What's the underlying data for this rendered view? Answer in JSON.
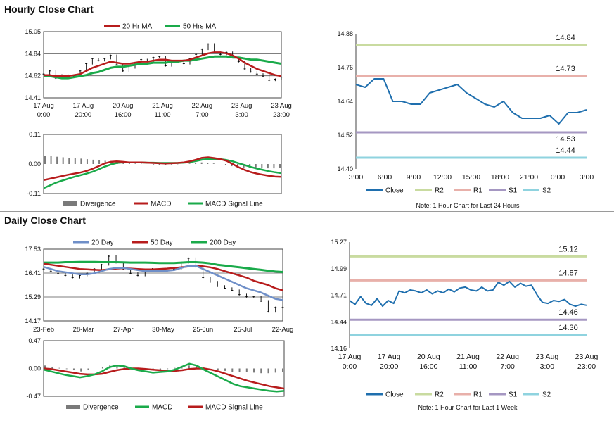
{
  "sections": {
    "hourly_title": "Hourly Close Chart",
    "daily_title": "Daily Close Chart"
  },
  "colors": {
    "red": "#b71c1c",
    "green": "#1aaa4a",
    "blue": "#1f6fae",
    "steel": "#6f8fc8",
    "r2": "#c9dba0",
    "r1": "#e8b0aa",
    "s1": "#a597c2",
    "s2": "#8fd3df",
    "grey": "#7a7a7a"
  },
  "chart_data": [
    {
      "id": "hourly_price",
      "type": "line",
      "title": "Hourly Close Chart",
      "legend": [
        "20 Hr MA",
        "50 Hrs MA"
      ],
      "ylim": [
        14.41,
        15.05
      ],
      "yticks": [
        "15.05",
        "14.84",
        "14.62",
        "14.41"
      ],
      "xticks": [
        [
          "17 Aug",
          "0:00"
        ],
        [
          "17 Aug",
          "20:00"
        ],
        [
          "20 Aug",
          "16:00"
        ],
        [
          "21 Aug",
          "11:00"
        ],
        [
          "22 Aug",
          "7:00"
        ],
        [
          "23 Aug",
          "3:00"
        ],
        [
          "23 Aug",
          "23:00"
        ]
      ],
      "series": [
        {
          "name": "Close",
          "values": [
            14.64,
            14.67,
            14.6,
            14.63,
            14.61,
            14.62,
            14.67,
            14.74,
            14.79,
            14.77,
            14.79,
            14.82,
            14.73,
            14.67,
            14.7,
            14.75,
            14.78,
            14.76,
            14.8,
            14.81,
            14.72,
            14.76,
            14.77,
            14.74,
            14.79,
            14.83,
            14.88,
            14.93,
            14.85,
            14.83,
            14.85,
            14.8,
            14.76,
            14.69,
            14.66,
            14.64,
            14.62,
            14.58,
            14.59,
            14.61
          ]
        },
        {
          "name": "20 Hr MA",
          "values": [
            14.63,
            14.63,
            14.62,
            14.62,
            14.62,
            14.63,
            14.64,
            14.67,
            14.7,
            14.72,
            14.74,
            14.76,
            14.75,
            14.74,
            14.74,
            14.75,
            14.76,
            14.76,
            14.77,
            14.78,
            14.78,
            14.77,
            14.77,
            14.77,
            14.78,
            14.8,
            14.82,
            14.84,
            14.85,
            14.85,
            14.84,
            14.82,
            14.79,
            14.75,
            14.72,
            14.69,
            14.67,
            14.65,
            14.63,
            14.62
          ]
        },
        {
          "name": "50 Hrs MA",
          "values": [
            14.62,
            14.62,
            14.61,
            14.6,
            14.6,
            14.61,
            14.62,
            14.63,
            14.65,
            14.66,
            14.68,
            14.7,
            14.71,
            14.71,
            14.72,
            14.73,
            14.74,
            14.74,
            14.75,
            14.75,
            14.75,
            14.76,
            14.76,
            14.77,
            14.77,
            14.78,
            14.79,
            14.8,
            14.81,
            14.81,
            14.81,
            14.8,
            14.8,
            14.79,
            14.78,
            14.78,
            14.77,
            14.76,
            14.75,
            14.74
          ]
        }
      ]
    },
    {
      "id": "hourly_macd",
      "type": "line",
      "legend": [
        "Divergence",
        "MACD",
        "MACD Signal Line"
      ],
      "ylim": [
        -0.11,
        0.11
      ],
      "yticks": [
        "0.11",
        "0.00",
        "-0.11"
      ],
      "series": [
        {
          "name": "Divergence",
          "values": [
            0.03,
            0.029,
            0.027,
            0.025,
            0.023,
            0.022,
            0.02,
            0.018,
            0.016,
            0.014,
            0.012,
            0.01,
            0.008,
            0.006,
            0.004,
            0.002,
            0.001,
            0.0,
            -0.002,
            -0.003,
            -0.003,
            -0.002,
            -0.001,
            0.0,
            0.002,
            0.004,
            0.006,
            0.004,
            0.002,
            0.0,
            -0.004,
            -0.008,
            -0.011,
            -0.013,
            -0.014,
            -0.015,
            -0.016,
            -0.016,
            -0.016,
            -0.015
          ]
        },
        {
          "name": "MACD",
          "values": [
            -0.06,
            -0.055,
            -0.05,
            -0.045,
            -0.04,
            -0.036,
            -0.032,
            -0.026,
            -0.018,
            -0.008,
            0.002,
            0.008,
            0.01,
            0.008,
            0.006,
            0.006,
            0.006,
            0.005,
            0.004,
            0.003,
            0.002,
            0.003,
            0.004,
            0.006,
            0.01,
            0.016,
            0.023,
            0.025,
            0.022,
            0.018,
            0.012,
            0.0,
            -0.012,
            -0.022,
            -0.03,
            -0.036,
            -0.04,
            -0.044,
            -0.047,
            -0.048
          ]
        },
        {
          "name": "MACD Signal Line",
          "values": [
            -0.09,
            -0.08,
            -0.07,
            -0.062,
            -0.055,
            -0.048,
            -0.042,
            -0.036,
            -0.029,
            -0.02,
            -0.01,
            -0.002,
            0.004,
            0.006,
            0.006,
            0.006,
            0.006,
            0.005,
            0.005,
            0.004,
            0.004,
            0.004,
            0.004,
            0.005,
            0.007,
            0.011,
            0.016,
            0.019,
            0.019,
            0.018,
            0.015,
            0.01,
            0.003,
            -0.004,
            -0.011,
            -0.017,
            -0.022,
            -0.027,
            -0.031,
            -0.034
          ]
        }
      ]
    },
    {
      "id": "hourly_levels",
      "type": "line",
      "note": "Note: 1 Hour Chart for Last 24 Hours",
      "legend": [
        "Close",
        "R2",
        "R1",
        "S1",
        "S2"
      ],
      "ylim": [
        14.4,
        14.88
      ],
      "yticks": [
        "14.88",
        "14.76",
        "14.64",
        "14.52",
        "14.40"
      ],
      "xticks": [
        "3:00",
        "6:00",
        "9:00",
        "12:00",
        "15:00",
        "18:00",
        "21:00",
        "0:00",
        "3:00"
      ],
      "levels": [
        {
          "name": "R2",
          "value": 14.84,
          "label": "14.84"
        },
        {
          "name": "R1",
          "value": 14.73,
          "label": "14.73"
        },
        {
          "name": "S1",
          "value": 14.53,
          "label": "14.53"
        },
        {
          "name": "S2",
          "value": 14.44,
          "label": "14.44"
        }
      ],
      "series": [
        {
          "name": "Close",
          "values": [
            14.7,
            14.69,
            14.72,
            14.72,
            14.64,
            14.64,
            14.63,
            14.63,
            14.67,
            14.68,
            14.69,
            14.7,
            14.67,
            14.65,
            14.63,
            14.62,
            14.64,
            14.6,
            14.58,
            14.58,
            14.58,
            14.59,
            14.56,
            14.6,
            14.6,
            14.61
          ]
        }
      ]
    },
    {
      "id": "daily_price",
      "type": "line",
      "title": "Daily Close Chart",
      "legend": [
        "20 Day",
        "50 Day",
        "200 Day"
      ],
      "ylim": [
        14.17,
        17.53
      ],
      "yticks": [
        "17.53",
        "16.41",
        "15.29",
        "14.17"
      ],
      "xticks": [
        "23-Feb",
        "28-Mar",
        "27-Apr",
        "30-May",
        "25-Jun",
        "25-Jul",
        "22-Aug"
      ],
      "series": [
        {
          "name": "Close",
          "values": [
            16.6,
            16.5,
            16.4,
            16.3,
            16.2,
            16.3,
            16.4,
            16.6,
            16.8,
            17.2,
            16.9,
            16.6,
            16.4,
            16.3,
            16.5,
            16.6,
            16.5,
            16.5,
            16.6,
            16.9,
            17.1,
            16.7,
            16.2,
            16.0,
            15.8,
            15.7,
            15.6,
            15.4,
            15.3,
            15.3,
            15.1,
            14.6,
            14.8,
            14.8
          ]
        },
        {
          "name": "20 Day",
          "values": [
            16.7,
            16.6,
            16.5,
            16.45,
            16.4,
            16.35,
            16.35,
            16.4,
            16.5,
            16.6,
            16.65,
            16.65,
            16.6,
            16.55,
            16.5,
            16.5,
            16.5,
            16.52,
            16.55,
            16.65,
            16.75,
            16.75,
            16.6,
            16.45,
            16.3,
            16.15,
            16.0,
            15.85,
            15.7,
            15.6,
            15.5,
            15.35,
            15.2,
            15.15
          ]
        },
        {
          "name": "50 Day",
          "values": [
            16.85,
            16.8,
            16.75,
            16.7,
            16.65,
            16.6,
            16.58,
            16.56,
            16.55,
            16.58,
            16.62,
            16.64,
            16.62,
            16.6,
            16.58,
            16.58,
            16.6,
            16.62,
            16.65,
            16.68,
            16.72,
            16.74,
            16.73,
            16.68,
            16.6,
            16.5,
            16.4,
            16.3,
            16.2,
            16.05,
            15.95,
            15.85,
            15.7,
            15.6
          ]
        },
        {
          "name": "200 Day",
          "values": [
            16.9,
            16.9,
            16.9,
            16.92,
            16.92,
            16.93,
            16.93,
            16.93,
            16.92,
            16.92,
            16.92,
            16.91,
            16.9,
            16.9,
            16.9,
            16.89,
            16.88,
            16.88,
            16.88,
            16.9,
            16.92,
            16.92,
            16.9,
            16.86,
            16.8,
            16.76,
            16.72,
            16.68,
            16.64,
            16.6,
            16.56,
            16.52,
            16.48,
            16.46
          ]
        }
      ]
    },
    {
      "id": "daily_macd",
      "type": "line",
      "legend": [
        "Divergence",
        "MACD",
        "MACD Signal Line"
      ],
      "ylim": [
        -0.47,
        0.47
      ],
      "yticks": [
        "0.47",
        "0.00",
        "-0.47"
      ],
      "series": [
        {
          "name": "Divergence",
          "values": [
            0.05,
            0.03,
            0.01,
            -0.01,
            -0.03,
            -0.05,
            -0.03,
            0.0,
            0.03,
            0.05,
            0.04,
            0.02,
            0.0,
            -0.01,
            -0.02,
            -0.03,
            -0.02,
            -0.01,
            0.01,
            0.03,
            0.05,
            0.04,
            0.02,
            0.0,
            -0.02,
            -0.04,
            -0.06,
            -0.06,
            -0.06,
            -0.07,
            -0.08,
            -0.08,
            -0.07,
            -0.06
          ]
        },
        {
          "name": "MACD",
          "values": [
            -0.02,
            -0.05,
            -0.08,
            -0.11,
            -0.13,
            -0.15,
            -0.13,
            -0.1,
            -0.05,
            0.02,
            0.05,
            0.04,
            0.0,
            -0.03,
            -0.05,
            -0.07,
            -0.06,
            -0.05,
            -0.02,
            0.03,
            0.08,
            0.05,
            -0.02,
            -0.08,
            -0.14,
            -0.2,
            -0.26,
            -0.3,
            -0.32,
            -0.34,
            -0.36,
            -0.38,
            -0.39,
            -0.38
          ]
        },
        {
          "name": "MACD Signal Line",
          "values": [
            0.0,
            -0.01,
            -0.03,
            -0.05,
            -0.07,
            -0.09,
            -0.1,
            -0.1,
            -0.09,
            -0.06,
            -0.03,
            -0.01,
            0.0,
            0.0,
            -0.01,
            -0.02,
            -0.03,
            -0.04,
            -0.04,
            -0.03,
            -0.01,
            0.0,
            0.0,
            -0.02,
            -0.05,
            -0.09,
            -0.13,
            -0.17,
            -0.21,
            -0.24,
            -0.27,
            -0.3,
            -0.32,
            -0.34
          ]
        }
      ]
    },
    {
      "id": "daily_levels",
      "type": "line",
      "note": "Note: 1 Hour Chart for Last 1 Week",
      "legend": [
        "Close",
        "R2",
        "R1",
        "S1",
        "S2"
      ],
      "ylim": [
        14.16,
        15.27
      ],
      "yticks": [
        "15.27",
        "14.99",
        "14.71",
        "14.44",
        "14.16"
      ],
      "xticks": [
        [
          "17 Aug",
          "0:00"
        ],
        [
          "17 Aug",
          "20:00"
        ],
        [
          "20 Aug",
          "16:00"
        ],
        [
          "21 Aug",
          "11:00"
        ],
        [
          "22 Aug",
          "7:00"
        ],
        [
          "23 Aug",
          "3:00"
        ],
        [
          "23 Aug",
          "23:00"
        ]
      ],
      "levels": [
        {
          "name": "R2",
          "value": 15.12,
          "label": "15.12"
        },
        {
          "name": "R1",
          "value": 14.87,
          "label": "14.87"
        },
        {
          "name": "S1",
          "value": 14.46,
          "label": "14.46"
        },
        {
          "name": "S2",
          "value": 14.3,
          "label": "14.30"
        }
      ],
      "series": [
        {
          "name": "Close",
          "values": [
            14.66,
            14.62,
            14.7,
            14.63,
            14.61,
            14.68,
            14.6,
            14.66,
            14.63,
            14.76,
            14.74,
            14.77,
            14.76,
            14.74,
            14.77,
            14.73,
            14.76,
            14.74,
            14.78,
            14.75,
            14.79,
            14.8,
            14.77,
            14.76,
            14.8,
            14.76,
            14.77,
            14.85,
            14.82,
            14.86,
            14.8,
            14.84,
            14.81,
            14.82,
            14.72,
            14.64,
            14.63,
            14.66,
            14.65,
            14.67,
            14.62,
            14.6,
            14.62,
            14.61
          ]
        }
      ]
    }
  ]
}
